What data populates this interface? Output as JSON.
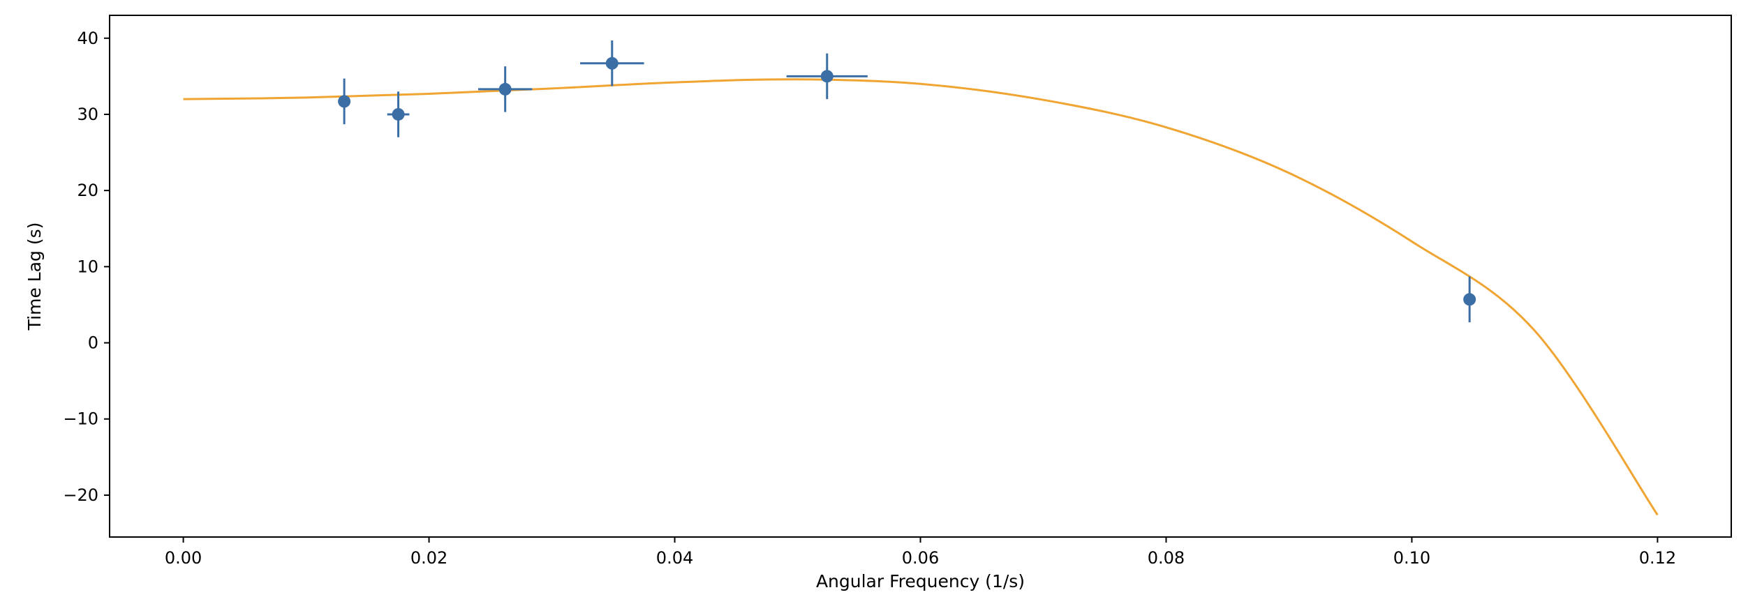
{
  "chart_data": {
    "type": "scatter",
    "title": "",
    "xlabel": "Angular Frequency (1/s)",
    "ylabel": "Time Lag (s)",
    "xlim": [
      -0.006,
      0.126
    ],
    "ylim": [
      -25.5,
      43
    ],
    "xticks": [
      0.0,
      0.02,
      0.04,
      0.06,
      0.08,
      0.1,
      0.12
    ],
    "xtick_labels": [
      "0.00",
      "0.02",
      "0.04",
      "0.06",
      "0.08",
      "0.10",
      "0.12"
    ],
    "yticks": [
      -20,
      -10,
      0,
      10,
      20,
      30,
      40
    ],
    "ytick_labels": [
      "−20",
      "−10",
      "0",
      "10",
      "20",
      "30",
      "40"
    ],
    "grid": false,
    "legend": "none",
    "points": {
      "x": [
        0.0131,
        0.0175,
        0.0262,
        0.0349,
        0.0524,
        0.1047
      ],
      "y": [
        31.7,
        30.0,
        33.3,
        36.7,
        35.0,
        5.7
      ],
      "xerr": [
        0.0,
        0.0009,
        0.0022,
        0.0026,
        0.0033,
        0.0
      ],
      "yerr": [
        3.0,
        3.0,
        3.0,
        3.0,
        3.0,
        3.0
      ],
      "color": "#3a6ea5"
    },
    "fit_curve": {
      "x": [
        0.0,
        0.01,
        0.02,
        0.03,
        0.04,
        0.05,
        0.06,
        0.07,
        0.08,
        0.09,
        0.1,
        0.11,
        0.12
      ],
      "y": [
        32.0,
        32.2,
        32.7,
        33.4,
        34.2,
        34.6,
        34.0,
        31.9,
        28.3,
        22.3,
        13.3,
        1.6,
        -22.6
      ],
      "color": "#f0a432"
    }
  }
}
